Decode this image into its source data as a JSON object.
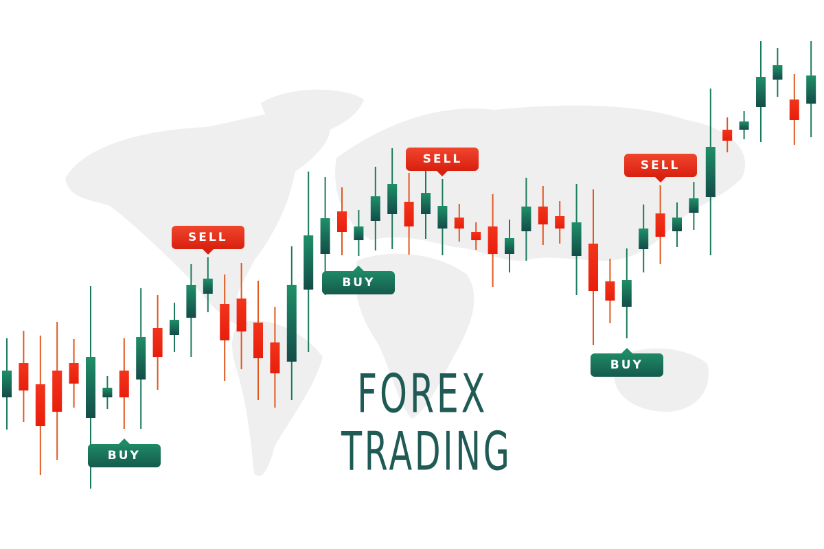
{
  "title": {
    "line1": "FOREX",
    "line2": "TRADING",
    "color": "#1f5a55"
  },
  "signals": [
    {
      "label": "BUY",
      "type": "buy",
      "candle": 7
    },
    {
      "label": "SELL",
      "type": "sell",
      "candle": 12
    },
    {
      "label": "BUY",
      "type": "buy",
      "candle": 21
    },
    {
      "label": "SELL",
      "type": "sell",
      "candle": 26
    },
    {
      "label": "BUY",
      "type": "buy",
      "candle": 37
    },
    {
      "label": "SELL",
      "type": "sell",
      "candle": 39
    }
  ],
  "colors": {
    "up": "#1a7a5e",
    "down": "#ee2a14",
    "map": "#eeeeee",
    "sell_tag": "#e33520",
    "buy_tag": "#1a7a5e"
  },
  "chart_data": {
    "type": "candlestick",
    "title": "",
    "xlabel": "",
    "ylabel": "",
    "grid": false,
    "axes_visible": false,
    "ylim": [
      0,
      160
    ],
    "candles": [
      {
        "o": 44.2,
        "h": 61.4,
        "l": 34.8,
        "c": 52
      },
      {
        "o": 54.2,
        "h": 63.6,
        "l": 37,
        "c": 46.2
      },
      {
        "o": 48,
        "h": 62.2,
        "l": 21.6,
        "c": 35.8
      },
      {
        "o": 52,
        "h": 66.2,
        "l": 26,
        "c": 40
      },
      {
        "o": 54.2,
        "h": 61.2,
        "l": 41.2,
        "c": 48.2
      },
      {
        "o": 38.2,
        "h": 76.6,
        "l": 17.6,
        "c": 56
      },
      {
        "o": 44.2,
        "h": 50.4,
        "l": 40.8,
        "c": 47
      },
      {
        "o": 52,
        "h": 61.4,
        "l": 35,
        "c": 44.2
      },
      {
        "o": 49.4,
        "h": 76,
        "l": 35,
        "c": 61.8
      },
      {
        "o": 64.4,
        "h": 74,
        "l": 46.4,
        "c": 56
      },
      {
        "o": 62.4,
        "h": 71.8,
        "l": 57.4,
        "c": 66.8
      },
      {
        "o": 67.4,
        "h": 83,
        "l": 56,
        "c": 77
      },
      {
        "o": 74.4,
        "h": 85,
        "l": 69,
        "c": 78.8
      },
      {
        "o": 71.4,
        "h": 80,
        "l": 49,
        "c": 60.8
      },
      {
        "o": 73,
        "h": 83.4,
        "l": 52.4,
        "c": 63.4
      },
      {
        "o": 66,
        "h": 78.2,
        "l": 43.4,
        "c": 55.6
      },
      {
        "o": 60.2,
        "h": 70.6,
        "l": 41.2,
        "c": 51.2
      },
      {
        "o": 54.6,
        "h": 88.2,
        "l": 43.4,
        "c": 77
      },
      {
        "o": 75.6,
        "h": 110,
        "l": 57.4,
        "c": 91.4
      },
      {
        "o": 86,
        "h": 108.4,
        "l": 74,
        "c": 96.4
      },
      {
        "o": 98.4,
        "h": 105.4,
        "l": 85.6,
        "c": 92.4
      },
      {
        "o": 90,
        "h": 98.8,
        "l": 85.4,
        "c": 94
      },
      {
        "o": 95.6,
        "h": 111.4,
        "l": 87,
        "c": 102.8
      },
      {
        "o": 97.6,
        "h": 116.8,
        "l": 87.4,
        "c": 106.4
      },
      {
        "o": 101.2,
        "h": 109.6,
        "l": 85.8,
        "c": 94
      },
      {
        "o": 97.6,
        "h": 111,
        "l": 90.4,
        "c": 103.8
      },
      {
        "o": 93.4,
        "h": 107.8,
        "l": 85.6,
        "c": 100
      },
      {
        "o": 96.6,
        "h": 100.6,
        "l": 89.6,
        "c": 93.4
      },
      {
        "o": 92.4,
        "h": 95.2,
        "l": 87.2,
        "c": 90
      },
      {
        "o": 94,
        "h": 103.4,
        "l": 76.4,
        "c": 86
      },
      {
        "o": 86,
        "h": 96,
        "l": 80.6,
        "c": 90.6
      },
      {
        "o": 92.6,
        "h": 108.2,
        "l": 84,
        "c": 99.8
      },
      {
        "o": 99.8,
        "h": 105.8,
        "l": 88.6,
        "c": 94.6
      },
      {
        "o": 97,
        "h": 101.4,
        "l": 89,
        "c": 93.4
      },
      {
        "o": 85.4,
        "h": 106.4,
        "l": 74,
        "c": 95.2
      },
      {
        "o": 89,
        "h": 104.8,
        "l": 59.4,
        "c": 75.2
      },
      {
        "o": 78,
        "h": 84.6,
        "l": 65.8,
        "c": 72.4
      },
      {
        "o": 70.6,
        "h": 87.6,
        "l": 61.4,
        "c": 78.4
      },
      {
        "o": 87.4,
        "h": 100.4,
        "l": 80.6,
        "c": 93.4
      },
      {
        "o": 97.8,
        "h": 106,
        "l": 83,
        "c": 91
      },
      {
        "o": 92.6,
        "h": 101,
        "l": 88,
        "c": 96.6
      },
      {
        "o": 98,
        "h": 107,
        "l": 93,
        "c": 102.2
      },
      {
        "o": 102.6,
        "h": 134.2,
        "l": 85.6,
        "c": 117.2
      },
      {
        "o": 122.2,
        "h": 125.8,
        "l": 115.6,
        "c": 119
      },
      {
        "o": 122.2,
        "h": 127.6,
        "l": 119.4,
        "c": 124.6
      },
      {
        "o": 128.8,
        "h": 148,
        "l": 118.6,
        "c": 137.6
      },
      {
        "o": 136.8,
        "h": 146,
        "l": 131.8,
        "c": 141
      },
      {
        "o": 131,
        "h": 138.4,
        "l": 117.8,
        "c": 125
      },
      {
        "o": 129.8,
        "h": 148,
        "l": 120,
        "c": 138
      }
    ]
  }
}
